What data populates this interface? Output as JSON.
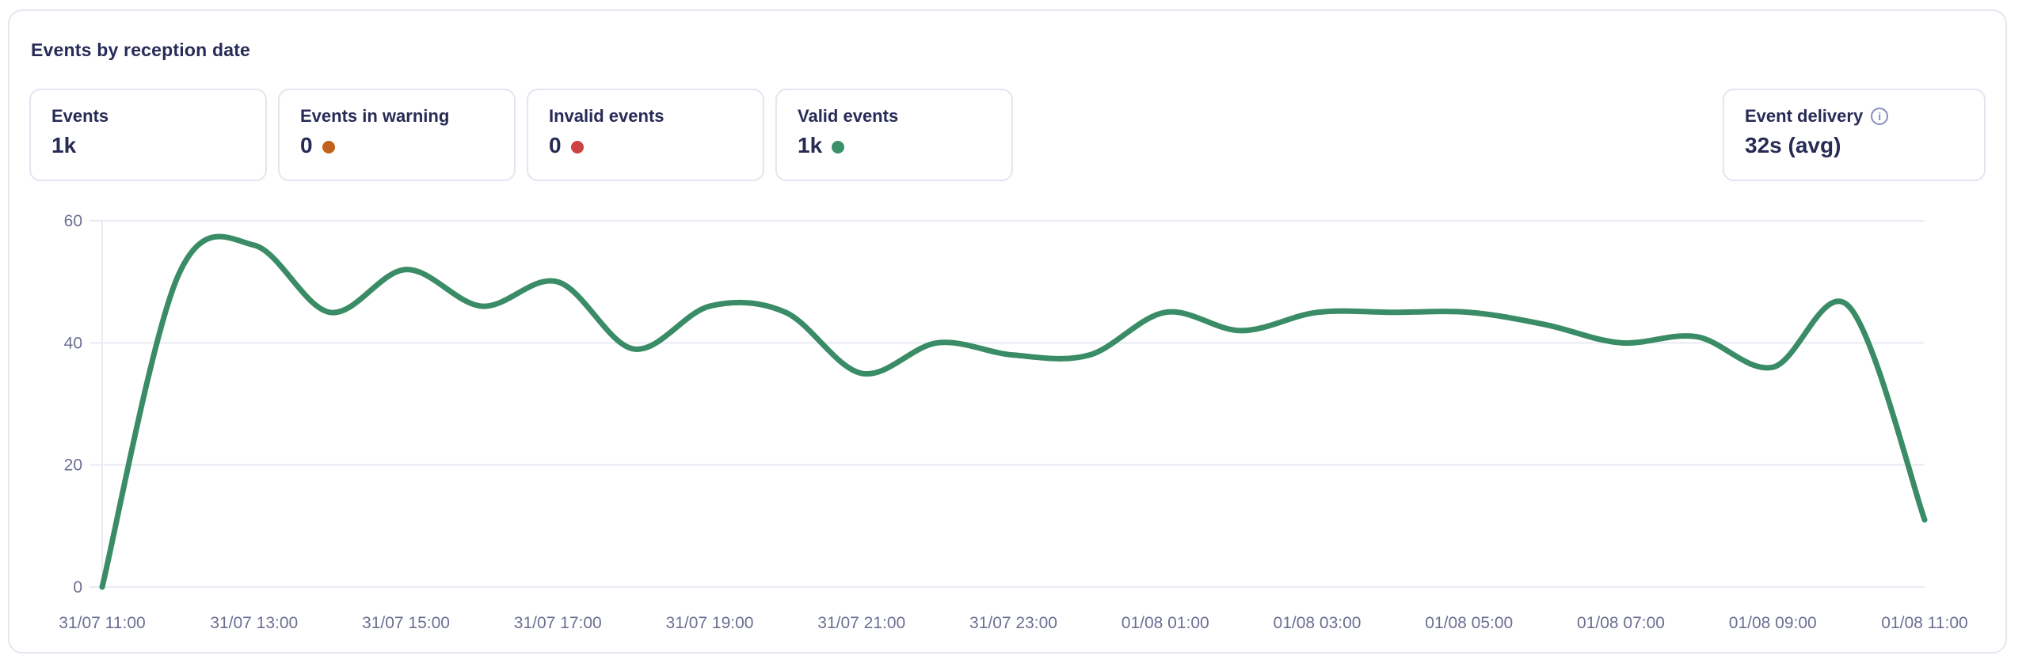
{
  "card": {
    "title": "Events by reception date"
  },
  "stats": [
    {
      "label": "Events",
      "value": "1k",
      "dot_color": null
    },
    {
      "label": "Events in warning",
      "value": "0",
      "dot_color": "#c2611e"
    },
    {
      "label": "Invalid events",
      "value": "0",
      "dot_color": "#cb4343"
    },
    {
      "label": "Valid events",
      "value": "1k",
      "dot_color": "#3a9169"
    }
  ],
  "delivery": {
    "label": "Event delivery",
    "info_glyph": "i",
    "value": "32s (avg)"
  },
  "colors": {
    "title_text": "#272b56",
    "axis_text": "#6c6f93",
    "card_border": "#e5e6f0",
    "line": "#3a8c66",
    "grid": "#e9eaf3"
  },
  "chart_data": {
    "type": "line",
    "title": "Events by reception date",
    "x": [
      "31/07 11:00",
      "31/07 12:00",
      "31/07 13:00",
      "31/07 14:00",
      "31/07 15:00",
      "31/07 16:00",
      "31/07 17:00",
      "31/07 18:00",
      "31/07 19:00",
      "31/07 20:00",
      "31/07 21:00",
      "31/07 22:00",
      "31/07 23:00",
      "01/08 00:00",
      "01/08 01:00",
      "01/08 02:00",
      "01/08 03:00",
      "01/08 04:00",
      "01/08 05:00",
      "01/08 06:00",
      "01/08 07:00",
      "01/08 08:00",
      "01/08 09:00",
      "01/08 10:00",
      "01/08 11:00"
    ],
    "values": [
      0,
      51,
      56,
      45,
      52,
      46,
      50,
      39,
      46,
      45,
      35,
      40,
      38,
      38,
      45,
      42,
      45,
      45,
      45,
      43,
      40,
      41,
      36,
      46,
      11
    ],
    "x_tick_every": 2,
    "xlabel": "",
    "ylabel": "",
    "ylim": [
      0,
      60
    ],
    "yticks": [
      0,
      20,
      40,
      60
    ],
    "grid": "horizontal",
    "legend": "none",
    "line_color": "#3a8c66",
    "grid_color": "#e9eaf3",
    "smooth": true
  }
}
